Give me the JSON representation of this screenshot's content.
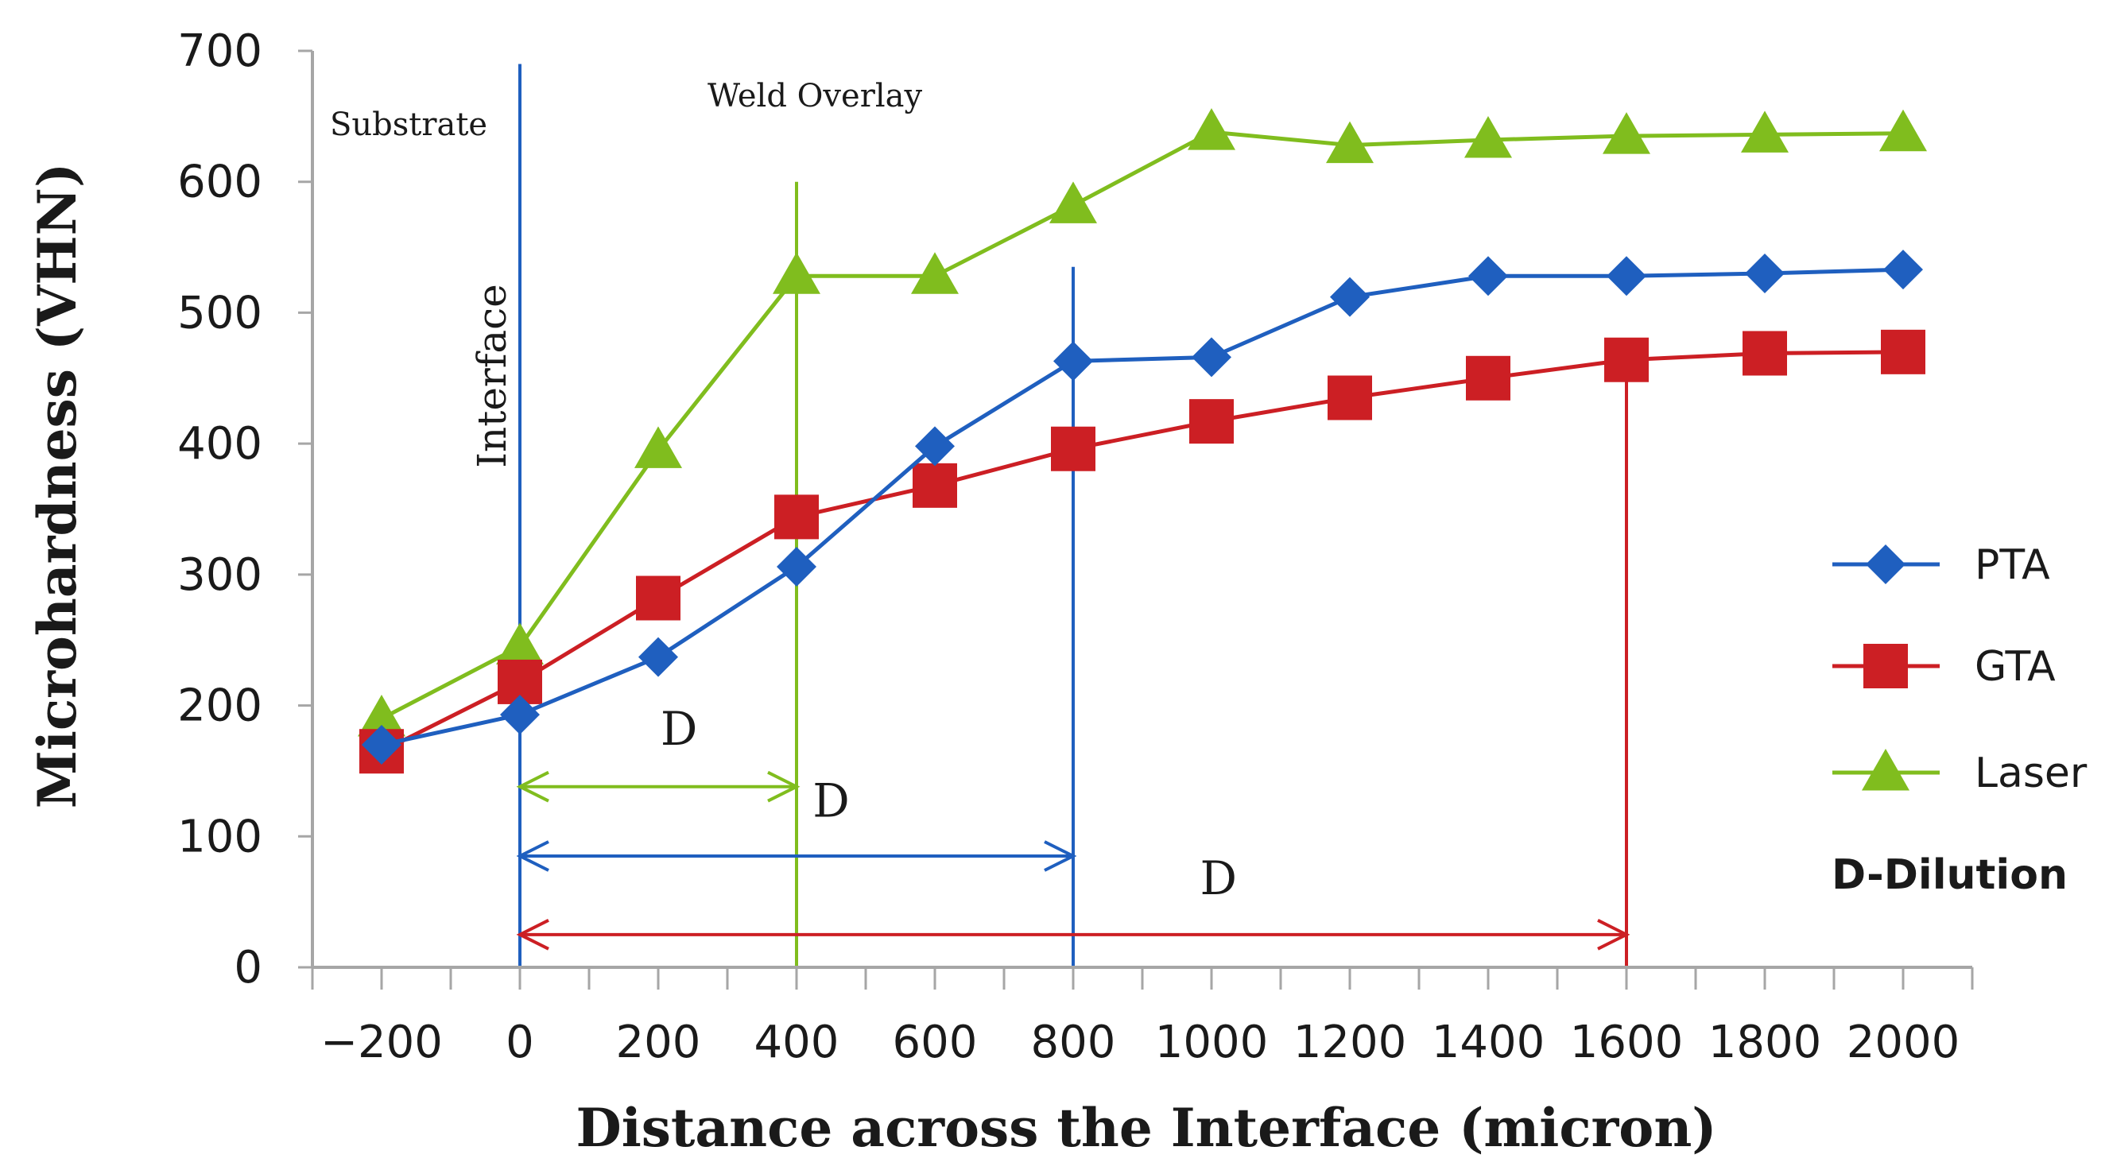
{
  "chart_data": {
    "type": "line",
    "xlabel": "Distance across the Interface (micron)",
    "ylabel": "Microhardness (VHN)",
    "xlim": [
      -300,
      2100
    ],
    "ylim": [
      0,
      700
    ],
    "xticks": [
      -200,
      0,
      200,
      400,
      600,
      800,
      1000,
      1200,
      1400,
      1600,
      1800,
      2000
    ],
    "xtick_labels": [
      "−200",
      "0",
      "200",
      "400",
      "600",
      "800",
      "1000",
      "1200",
      "1400",
      "1600",
      "1800",
      "2000"
    ],
    "yticks": [
      0,
      100,
      200,
      300,
      400,
      500,
      600,
      700
    ],
    "ytick_labels": [
      "0",
      "100",
      "200",
      "300",
      "400",
      "500",
      "600",
      "700"
    ],
    "grid": false,
    "legend_position": "right",
    "x": [
      -200,
      0,
      200,
      400,
      600,
      800,
      1000,
      1200,
      1400,
      1600,
      1800,
      2000
    ],
    "series": [
      {
        "name": "PTA",
        "color": "#1f5fbf",
        "marker": "diamond",
        "values": [
          170,
          193,
          237,
          306,
          398,
          463,
          466,
          512,
          528,
          528,
          530,
          533
        ]
      },
      {
        "name": "GTA",
        "color": "#cc1f24",
        "marker": "square",
        "values": [
          165,
          218,
          282,
          344,
          368,
          396,
          417,
          435,
          450,
          464,
          469,
          470
        ]
      },
      {
        "name": "Laser",
        "color": "#80bd1e",
        "marker": "triangle",
        "values": [
          190,
          245,
          395,
          528,
          528,
          582,
          638,
          628,
          632,
          635,
          636,
          637
        ]
      }
    ],
    "annotations": {
      "substrate_label": "Substrate",
      "weld_overlay_label": "Weld Overlay",
      "interface_label": "Interface",
      "dilution_note": "D-Dilution",
      "dilution_marks": [
        {
          "label": "D",
          "series": "Laser",
          "from_x": 0,
          "to_x": 400,
          "y": 138,
          "line_top": 600,
          "label_x": 230,
          "label_y": 170
        },
        {
          "label": "D",
          "series": "PTA",
          "from_x": 0,
          "to_x": 800,
          "y": 85,
          "line_top": 535,
          "label_x": 450,
          "label_y": 115
        },
        {
          "label": "D",
          "series": "GTA",
          "from_x": 0,
          "to_x": 1600,
          "y": 25,
          "line_top": 465,
          "label_x": 1010,
          "label_y": 56
        }
      ],
      "interface_line": {
        "x": 0,
        "top": 690
      }
    }
  }
}
